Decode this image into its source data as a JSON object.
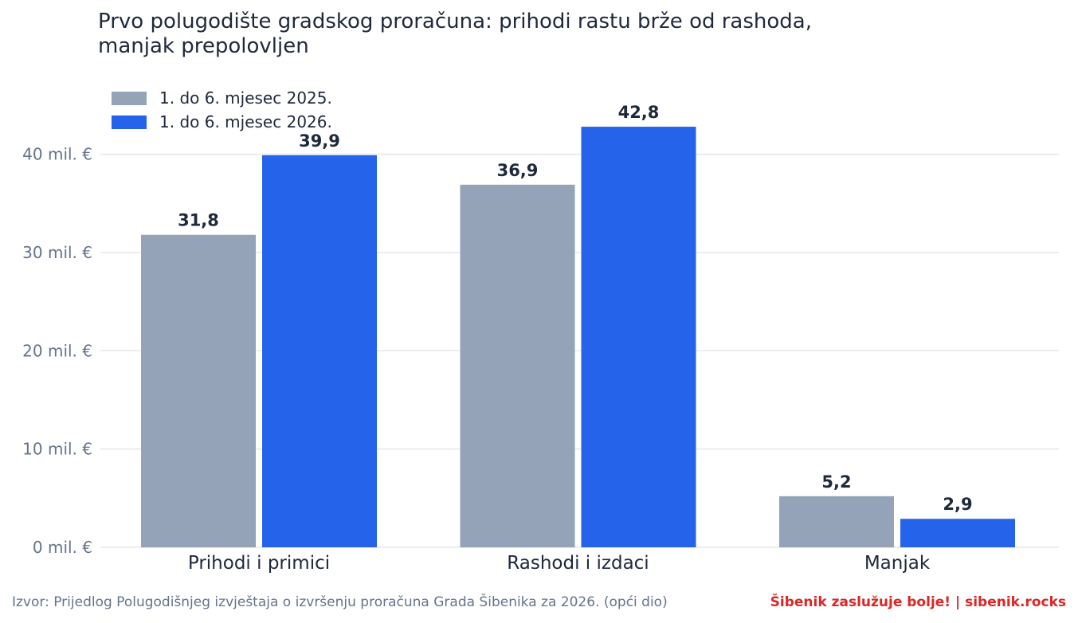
{
  "title": "Prvo polugodište gradskog proračuna: prihodi rastu brže od rashoda, manjak prepolovljen",
  "source": "Izvor: Prijedlog Polugodišnjeg izvještaja o izvršenju proračuna Grada Šibenika za 2026. (opći dio)",
  "brand": "Šibenik zaslužuje bolje!  |  sibenik.rocks",
  "colors": {
    "series_2025": "#94a3b8",
    "series_2026": "#2563eb",
    "text_dark": "#1e293b",
    "text_muted": "#64748b",
    "grid": "#e5e7eb"
  },
  "chart_data": {
    "type": "bar",
    "categories": [
      "Prihodi i primici",
      "Rashodi i izdaci",
      "Manjak"
    ],
    "series": [
      {
        "name": "1. do 6. mjesec 2025.",
        "values": [
          31.8,
          36.9,
          5.2
        ],
        "labels": [
          "31,8",
          "36,9",
          "5,2"
        ]
      },
      {
        "name": "1. do 6. mjesec 2026.",
        "values": [
          39.9,
          42.8,
          2.9
        ],
        "labels": [
          "39,9",
          "42,8",
          "2,9"
        ]
      }
    ],
    "yticks": [
      0,
      10,
      20,
      30,
      40
    ],
    "ytick_labels": [
      "0 mil. €",
      "10 mil. €",
      "20 mil. €",
      "30 mil. €",
      "40 mil. €"
    ],
    "ylim": [
      0,
      45.5
    ],
    "grid": true,
    "legend_position": "top-left"
  }
}
